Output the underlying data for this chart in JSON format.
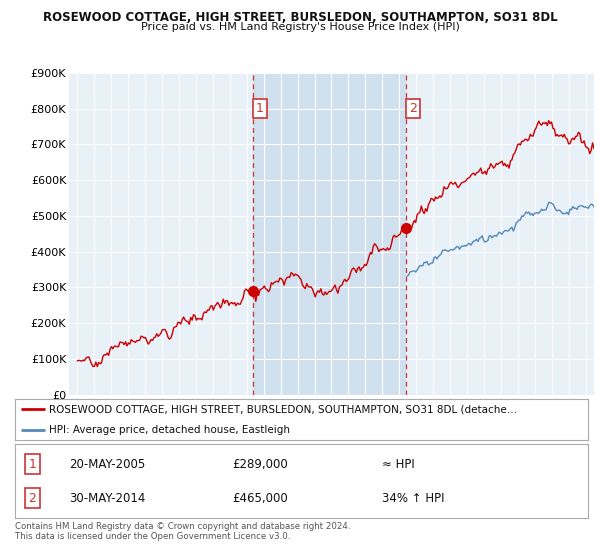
{
  "title": "ROSEWOOD COTTAGE, HIGH STREET, BURSLEDON, SOUTHAMPTON, SO31 8DL",
  "subtitle": "Price paid vs. HM Land Registry's House Price Index (HPI)",
  "ylim": [
    0,
    900000
  ],
  "yticks": [
    0,
    100000,
    200000,
    300000,
    400000,
    500000,
    600000,
    700000,
    800000,
    900000
  ],
  "ytick_labels": [
    "£0",
    "£100K",
    "£200K",
    "£300K",
    "£400K",
    "£500K",
    "£600K",
    "£700K",
    "£800K",
    "£900K"
  ],
  "sale1_year": 2005.38,
  "sale1_price": 289000,
  "sale2_year": 2014.41,
  "sale2_price": 465000,
  "legend_line1": "ROSEWOOD COTTAGE, HIGH STREET, BURSLEDON, SOUTHAMPTON, SO31 8DL (detache…",
  "legend_line2": "HPI: Average price, detached house, Eastleigh",
  "annot1_date": "20-MAY-2005",
  "annot1_price": "£289,000",
  "annot1_hpi": "≈ HPI",
  "annot2_date": "30-MAY-2014",
  "annot2_price": "£465,000",
  "annot2_hpi": "34% ↑ HPI",
  "footer": "Contains HM Land Registry data © Crown copyright and database right 2024.\nThis data is licensed under the Open Government Licence v3.0.",
  "red_color": "#cc0000",
  "blue_color": "#5588bb",
  "dashed_color": "#cc3333",
  "background_plot": "#e8f0f8",
  "background_shaded": "#d0e0ef",
  "background_fig": "#ffffff",
  "grid_color": "#ffffff",
  "label_box_color": "#cc3333"
}
